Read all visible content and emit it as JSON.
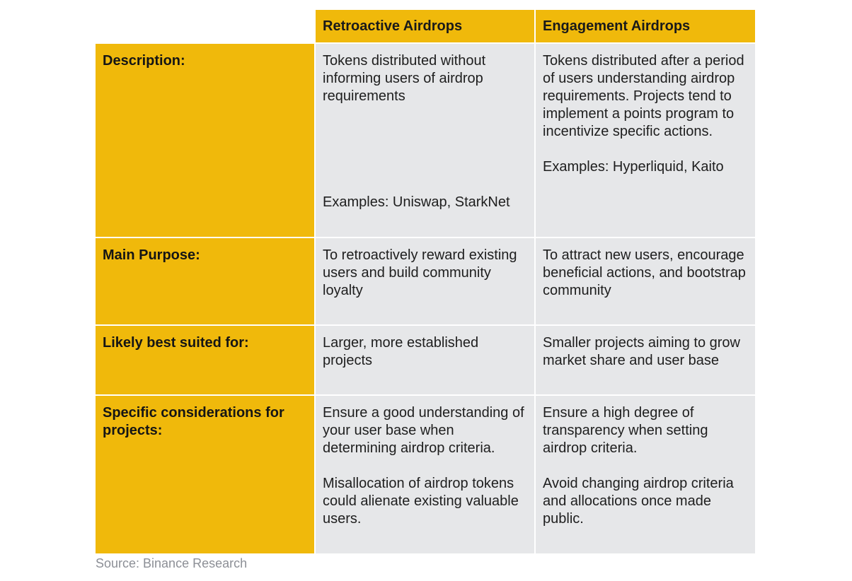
{
  "headers": {
    "col1": "Retroactive Airdrops",
    "col2": "Engagement Airdrops"
  },
  "rows": [
    {
      "label": "Description:",
      "retroactive": [
        "Tokens distributed without informing users of airdrop requirements"
      ],
      "engagement": [
        "Tokens distributed after a period of users understanding airdrop requirements. Projects tend to implement a points program to incentivize specific actions."
      ],
      "examples_retroactive": "Examples: Uniswap, StarkNet",
      "examples_engagement": "Examples: Hyperliquid, Kaito"
    },
    {
      "label": "Main Purpose:",
      "retroactive": [
        "To retroactively reward existing users and build community loyalty"
      ],
      "engagement": [
        "To attract new users, encourage beneficial actions, and bootstrap community"
      ]
    },
    {
      "label": "Likely best suited for:",
      "retroactive": [
        "Larger, more established projects"
      ],
      "engagement": [
        "Smaller projects aiming to grow market share and user base"
      ]
    },
    {
      "label": "Specific considerations for projects:",
      "retroactive": [
        "Ensure a good understanding of your user base when determining airdrop criteria.",
        "Misallocation of airdrop tokens could alienate existing valuable users."
      ],
      "engagement": [
        "Ensure a high degree of transparency when setting airdrop criteria.",
        "Avoid changing airdrop criteria and allocations once made public."
      ]
    }
  ],
  "source": "Source: Binance Research",
  "colors": {
    "accent": "#f0b90b",
    "cell_background": "#e6e7e9",
    "source_text": "#8c8f96"
  }
}
